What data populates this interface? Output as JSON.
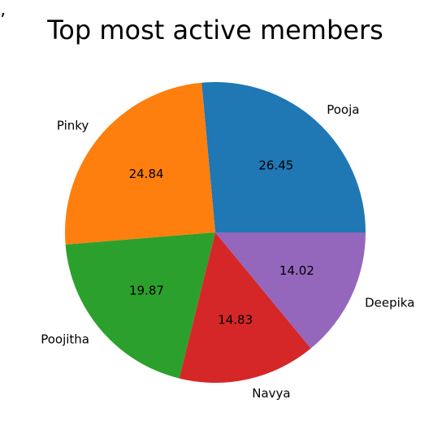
{
  "chart_data": {
    "type": "pie",
    "title": "Top most active members",
    "categories": [
      "Pooja",
      "Pinky",
      "Poojitha",
      "Navya",
      "Deepika"
    ],
    "values": [
      26.45,
      24.84,
      19.87,
      14.83,
      14.02
    ],
    "value_labels": [
      "26.45",
      "24.84",
      "19.87",
      "14.83",
      "14.02"
    ],
    "colors": [
      "#1f77b4",
      "#ff7f0e",
      "#2ca02c",
      "#d62728",
      "#9467bd"
    ],
    "start_angle_deg": 0,
    "direction": "counterclockwise"
  }
}
